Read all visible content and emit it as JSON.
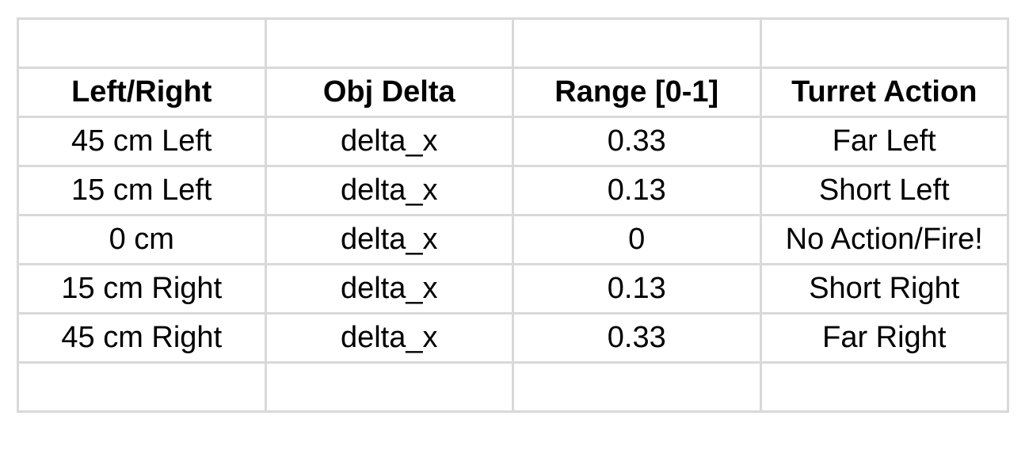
{
  "table": {
    "headers": [
      "Left/Right",
      "Obj Delta",
      "Range [0-1]",
      "Turret Action"
    ],
    "rows": [
      [
        "45 cm Left",
        "delta_x",
        "0.33",
        "Far Left"
      ],
      [
        "15 cm Left",
        "delta_x",
        "0.13",
        "Short Left"
      ],
      [
        "0 cm",
        "delta_x",
        "0",
        "No Action/Fire!"
      ],
      [
        "15 cm Right",
        "delta_x",
        "0.13",
        "Short Right"
      ],
      [
        "45 cm Right",
        "delta_x",
        "0.33",
        "Far Right"
      ]
    ],
    "colors": {
      "border": "#d9d9d9",
      "text": "#000000",
      "background": "#ffffff"
    }
  }
}
